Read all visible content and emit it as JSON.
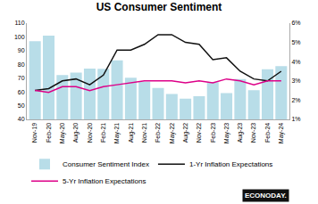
{
  "chart_data": {
    "type": "bar",
    "title": "US Consumer Sentiment",
    "categories": [
      "Nov-19",
      "Feb-20",
      "May-20",
      "Aug-20",
      "Nov-20",
      "Feb-21",
      "May-21",
      "Aug-21",
      "Nov-21",
      "Feb-22",
      "May-22",
      "Aug-22",
      "Nov-22",
      "Feb-23",
      "May-23",
      "Aug-23",
      "Nov-23",
      "Feb-24",
      "May-24"
    ],
    "series": [
      {
        "name": "Consumer Sentiment Index",
        "type": "bar",
        "color": "#b8dde8",
        "values": [
          96.8,
          100.9,
          72.3,
          74.1,
          76.9,
          76.8,
          82.9,
          70.3,
          67.4,
          62.8,
          58.4,
          55.1,
          56.8,
          67.0,
          59.2,
          69.4,
          61.3,
          76.5,
          78.8
        ]
      },
      {
        "name": "1-Yr Inflation Expectations",
        "type": "line",
        "axis": "y2",
        "color": "#111111",
        "values": [
          2.5,
          2.6,
          3.0,
          3.1,
          2.8,
          3.3,
          4.6,
          4.6,
          4.9,
          5.4,
          5.4,
          5.0,
          4.9,
          4.1,
          4.2,
          3.5,
          3.1,
          3.0,
          3.5
        ]
      },
      {
        "name": "5-Yr Inflation Expectations",
        "type": "line",
        "axis": "y2",
        "color": "#dd0088",
        "values": [
          2.5,
          2.4,
          2.7,
          2.7,
          2.5,
          2.7,
          2.8,
          2.9,
          3.0,
          3.0,
          3.0,
          2.9,
          3.0,
          2.9,
          3.1,
          3.0,
          2.8,
          3.0,
          3.0
        ]
      }
    ],
    "ylim": [
      40,
      110
    ],
    "yticks": [
      40,
      50,
      60,
      70,
      80,
      90,
      100,
      110
    ],
    "y2lim": [
      1,
      6
    ],
    "y2ticks": [
      {
        "value": 1,
        "label": "1%"
      },
      {
        "value": 2,
        "label": "2%"
      },
      {
        "value": 3,
        "label": "3%"
      },
      {
        "value": 4,
        "label": "4%"
      },
      {
        "value": 5,
        "label": "5%"
      },
      {
        "value": 6,
        "label": "6%"
      }
    ],
    "annotations": [
      "ECONODAY."
    ],
    "legend": "bottom",
    "grid": false
  }
}
